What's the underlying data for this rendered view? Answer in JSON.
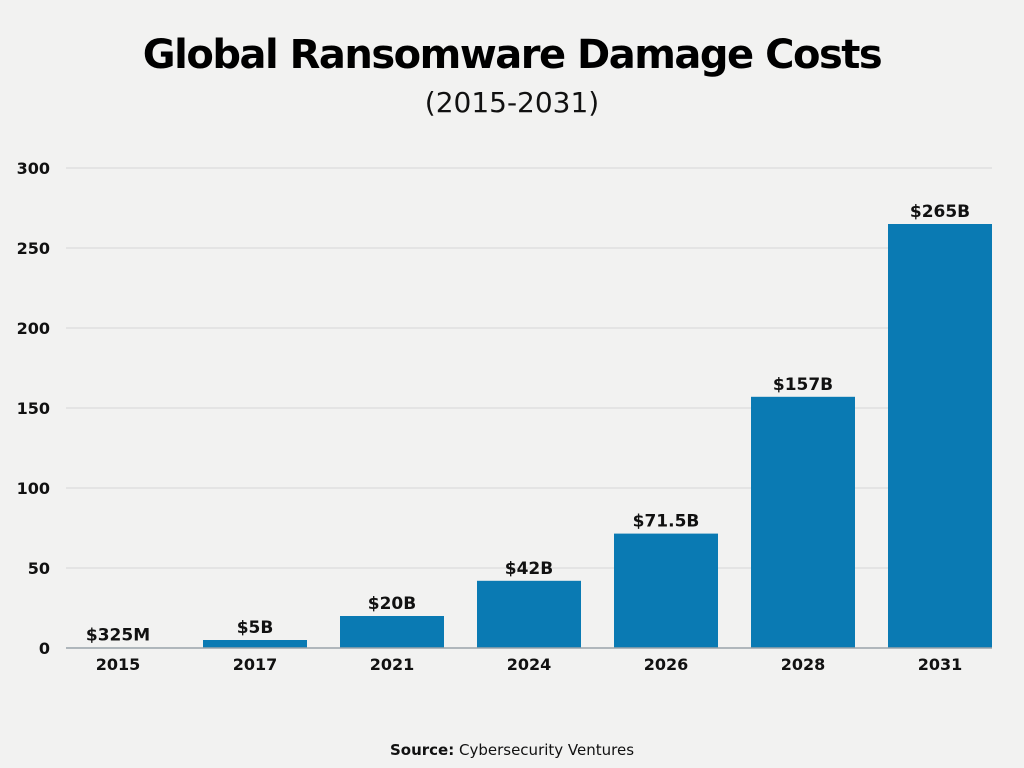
{
  "chart_data": {
    "type": "bar",
    "title": "Global Ransomware Damage Costs",
    "subtitle": "(2015-2031)",
    "categories": [
      "2015",
      "2017",
      "2021",
      "2024",
      "2026",
      "2028",
      "2031"
    ],
    "values": [
      0.325,
      5,
      20,
      42,
      71.5,
      157,
      265
    ],
    "data_labels": [
      "$325M",
      "$5B",
      "$20B",
      "$42B",
      "$71.5B",
      "$157B",
      "$265B"
    ],
    "yticks": [
      0,
      50,
      100,
      150,
      200,
      250,
      300
    ],
    "ylim": [
      0,
      300
    ],
    "grid": true,
    "bar_color": "#0a7ab3",
    "source_label": "Source:",
    "source_text": "Cybersecurity Ventures"
  }
}
